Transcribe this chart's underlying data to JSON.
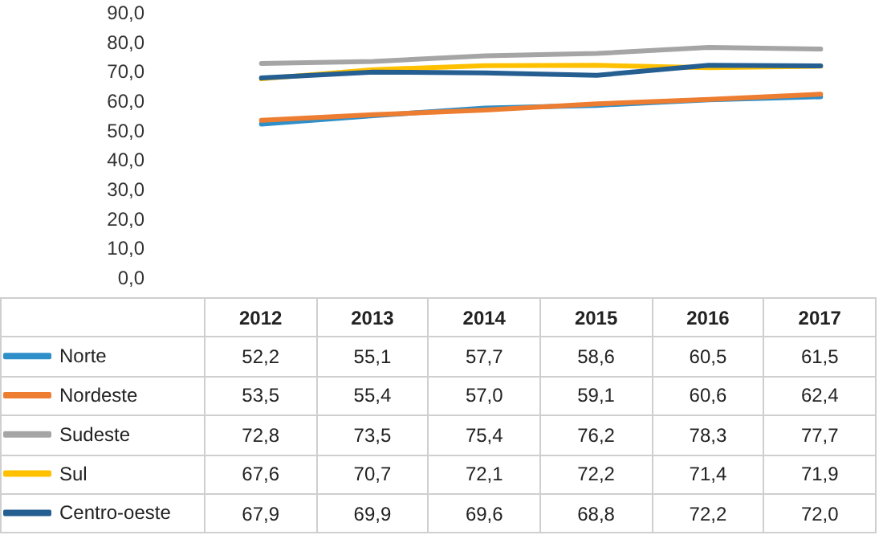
{
  "chart_data": {
    "type": "line",
    "categories": [
      "2012",
      "2013",
      "2014",
      "2015",
      "2016",
      "2017"
    ],
    "series": [
      {
        "name": "Norte",
        "color": "#2e8fc9",
        "values": [
          52.2,
          55.1,
          57.7,
          58.6,
          60.5,
          61.5
        ],
        "value_labels": [
          "52,2",
          "55,1",
          "57,7",
          "58,6",
          "60,5",
          "61,5"
        ]
      },
      {
        "name": "Nordeste",
        "color": "#ed7d31",
        "values": [
          53.5,
          55.4,
          57.0,
          59.1,
          60.6,
          62.4
        ],
        "value_labels": [
          "53,5",
          "55,4",
          "57,0",
          "59,1",
          "60,6",
          "62,4"
        ]
      },
      {
        "name": "Sudeste",
        "color": "#a5a5a5",
        "values": [
          72.8,
          73.5,
          75.4,
          76.2,
          78.3,
          77.7
        ],
        "value_labels": [
          "72,8",
          "73,5",
          "75,4",
          "76,2",
          "78,3",
          "77,7"
        ]
      },
      {
        "name": "Sul",
        "color": "#ffc000",
        "values": [
          67.6,
          70.7,
          72.1,
          72.2,
          71.4,
          71.9
        ],
        "value_labels": [
          "67,6",
          "70,7",
          "72,1",
          "72,2",
          "71,4",
          "71,9"
        ]
      },
      {
        "name": "Centro-oeste",
        "color": "#255e91",
        "values": [
          67.9,
          69.9,
          69.6,
          68.8,
          72.2,
          72.0
        ],
        "value_labels": [
          "67,9",
          "69,9",
          "69,6",
          "68,8",
          "72,2",
          "72,0"
        ]
      }
    ],
    "ylim": [
      0,
      90
    ],
    "yticks": [
      {
        "value": 0,
        "label": "0,0"
      },
      {
        "value": 10,
        "label": "10,0"
      },
      {
        "value": 20,
        "label": "20,0"
      },
      {
        "value": 30,
        "label": "30,0"
      },
      {
        "value": 40,
        "label": "40,0"
      },
      {
        "value": 50,
        "label": "50,0"
      },
      {
        "value": 60,
        "label": "60,0"
      },
      {
        "value": 70,
        "label": "70,0"
      },
      {
        "value": 80,
        "label": "80,0"
      },
      {
        "value": 90,
        "label": "90,0"
      }
    ],
    "grid": false,
    "legend": "bottom left",
    "marker": "none",
    "line_style": "solid"
  }
}
